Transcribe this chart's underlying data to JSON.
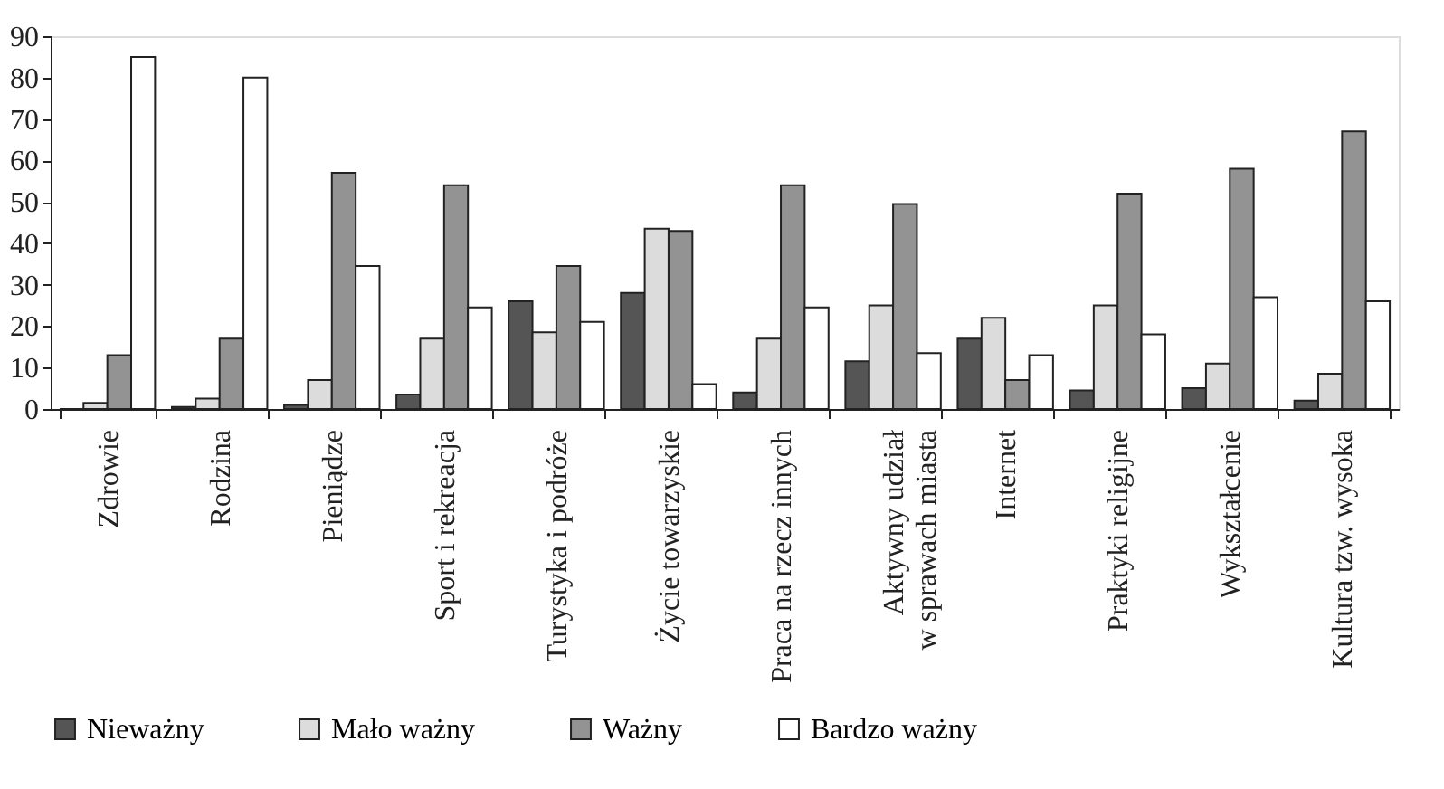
{
  "chart_data": {
    "type": "bar",
    "categories": [
      "Zdrowie",
      "Rodzina",
      "Pieniądze",
      "Sport i rekreacja",
      "Turystyka i podróże",
      "Życie towarzyskie",
      "Praca na rzecz innych",
      "Aktywny udział\nw sprawach miasta",
      "Internet",
      "Praktyki religijne",
      "Wykształcenie",
      "Kultura tzw. wysoka"
    ],
    "series": [
      {
        "name": "Nieważny",
        "color": "#555555",
        "values": [
          0,
          0.5,
          1,
          3.5,
          26,
          28,
          4,
          11.5,
          17,
          4.5,
          5,
          2
        ]
      },
      {
        "name": "Mało ważny",
        "color": "#dcdcdc",
        "values": [
          1.5,
          2.5,
          7,
          17,
          18.5,
          43.5,
          17,
          25,
          22,
          25,
          11,
          8.5
        ]
      },
      {
        "name": "Ważny",
        "color": "#939393",
        "values": [
          13,
          17,
          57,
          54,
          34.5,
          43,
          54,
          49.5,
          7,
          52,
          58,
          67
        ]
      },
      {
        "name": "Bardzo ważny",
        "color": "#ffffff",
        "values": [
          85,
          80,
          34.5,
          24.5,
          21,
          6,
          24.5,
          13.5,
          13,
          18,
          27,
          26
        ]
      }
    ],
    "ylim": [
      0,
      90
    ],
    "yticks": [
      0,
      10,
      20,
      30,
      40,
      50,
      60,
      70,
      80,
      90
    ],
    "grid": false,
    "legend": "bottom"
  }
}
